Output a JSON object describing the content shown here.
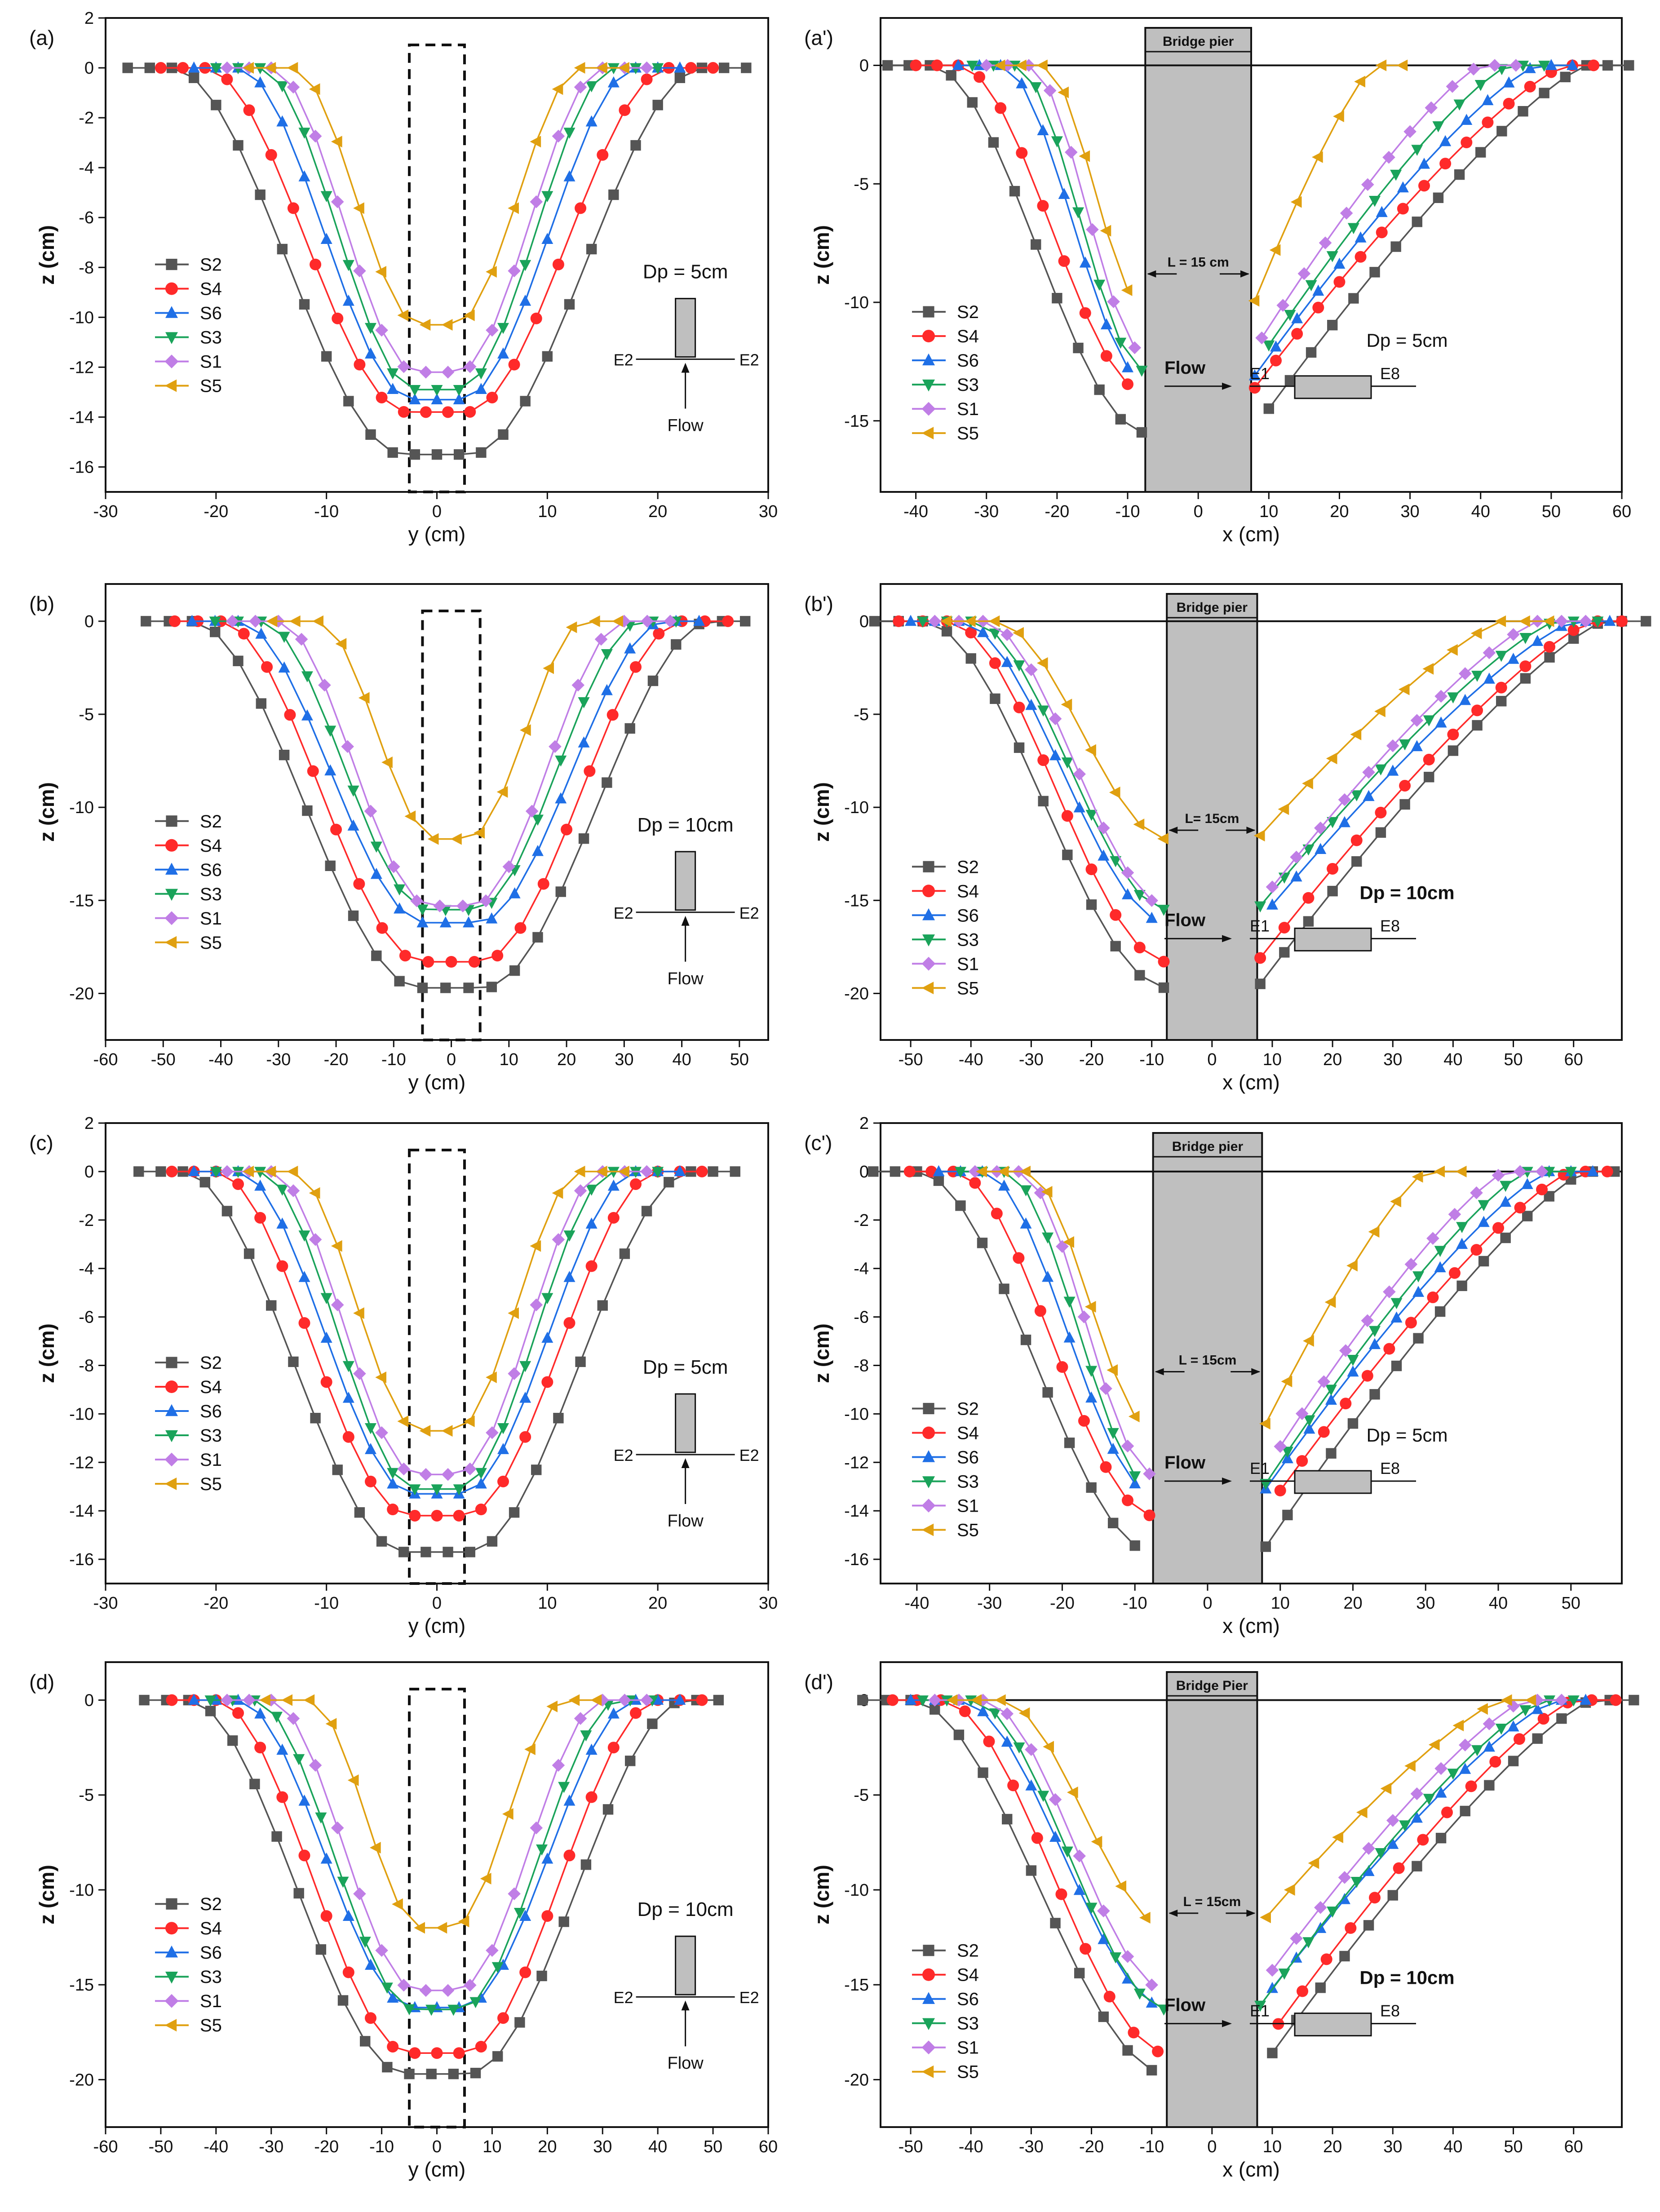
{
  "colors": {
    "S2": "#555555",
    "S4": "#ff2a2a",
    "S6": "#1f6fe6",
    "S3": "#1aa35a",
    "S1": "#c07ee6",
    "S5": "#e0a010",
    "pier_fill": "#bfbfbf"
  },
  "labels": {
    "S2": "S2",
    "S4": "S4",
    "S6": "S6",
    "S3": "S3",
    "S1": "S1",
    "S5": "S5",
    "flow": "Flow",
    "pier": "Bridge pier",
    "pier_alt": "Bridge Pier",
    "E1": "E1",
    "E2": "E2",
    "E8": "E8"
  },
  "chart_data": [
    {
      "id": "a",
      "type": "line",
      "panel_label": "(a)",
      "xlabel": "y (cm)",
      "ylabel": "z (cm)",
      "xlim": [
        -30,
        30
      ],
      "ylim": [
        -17,
        2
      ],
      "xticks": [
        -30,
        -20,
        -10,
        0,
        10,
        20,
        30
      ],
      "yticks": [
        -16,
        -14,
        -12,
        -10,
        -8,
        -6,
        -4,
        -2,
        0,
        2
      ],
      "pier_width_cm": 5,
      "dp_label": "Dp = 5cm",
      "inset": "E2-E2",
      "series": [
        {
          "name": "S2",
          "depth": 15.5,
          "extent": 24
        },
        {
          "name": "S4",
          "depth": 13.8,
          "extent": 21
        },
        {
          "name": "S6",
          "depth": 13.3,
          "extent": 18
        },
        {
          "name": "S3",
          "depth": 12.9,
          "extent": 16
        },
        {
          "name": "S1",
          "depth": 12.2,
          "extent": 15
        },
        {
          "name": "S5",
          "depth": 10.3,
          "extent": 13
        }
      ]
    },
    {
      "id": "a2",
      "type": "line",
      "panel_label": "(a')",
      "xlabel": "x (cm)",
      "ylabel": "z (cm)",
      "xlim": [
        -45,
        60
      ],
      "ylim": [
        -18,
        2
      ],
      "xticks": [
        -40,
        -30,
        -20,
        -10,
        0,
        10,
        20,
        30,
        40,
        50,
        60
      ],
      "yticks": [
        -15,
        -10,
        -5,
        0
      ],
      "pier_x": [
        -7.5,
        7.5
      ],
      "pier_label": "Bridge pier",
      "l_label": "L = 15 cm",
      "dp_label": "Dp = 5cm",
      "series": [
        {
          "name": "S2",
          "depth": 15.5,
          "up": -38,
          "down": 55
        },
        {
          "name": "S4",
          "depth": 13.8,
          "up": -34,
          "down": 52
        },
        {
          "name": "S6",
          "depth": 13.3,
          "up": -28,
          "down": 48
        },
        {
          "name": "S3",
          "depth": 12.9,
          "up": -26,
          "down": 44
        },
        {
          "name": "S1",
          "depth": 12.2,
          "up": -24,
          "down": 40
        },
        {
          "name": "S5",
          "depth": 10.3,
          "up": -22,
          "down": 25
        }
      ]
    },
    {
      "id": "b",
      "type": "line",
      "panel_label": "(b)",
      "xlabel": "y (cm)",
      "ylabel": "z (cm)",
      "xlim": [
        -60,
        55
      ],
      "ylim": [
        -22.5,
        2
      ],
      "xticks": [
        -60,
        -50,
        -40,
        -30,
        -20,
        -10,
        0,
        10,
        20,
        30,
        40,
        50
      ],
      "yticks": [
        -20,
        -15,
        -10,
        -5,
        0
      ],
      "pier_width_cm": 10,
      "dp_label": "Dp = 10cm",
      "inset": "E2-E2",
      "series": [
        {
          "name": "S2",
          "depth": 19.7,
          "extent": 45
        },
        {
          "name": "S4",
          "depth": 18.3,
          "extent": 40
        },
        {
          "name": "S6",
          "depth": 16.2,
          "extent": 37
        },
        {
          "name": "S3",
          "depth": 15.5,
          "extent": 33
        },
        {
          "name": "S1",
          "depth": 15.3,
          "extent": 30
        },
        {
          "name": "S5",
          "depth": 11.7,
          "extent": 23
        }
      ]
    },
    {
      "id": "b2",
      "type": "line",
      "panel_label": "(b')",
      "xlabel": "x (cm)",
      "ylabel": "z (cm)",
      "xlim": [
        -55,
        68
      ],
      "ylim": [
        -22.5,
        2
      ],
      "xticks": [
        -50,
        -40,
        -30,
        -20,
        -10,
        0,
        10,
        20,
        30,
        40,
        50,
        60
      ],
      "yticks": [
        -20,
        -15,
        -10,
        -5,
        0
      ],
      "pier_x": [
        -7.5,
        7.5
      ],
      "pier_label": "Bridge pier",
      "l_label": "L= 15cm",
      "dp_label": "Dp = 10cm",
      "series": [
        {
          "name": "S2",
          "depth": 19.7,
          "up": -48,
          "down": 65
        },
        {
          "name": "S4",
          "depth": 18.3,
          "up": -44,
          "down": 63
        },
        {
          "name": "S6",
          "depth": 16.2,
          "up": -42,
          "down": 60
        },
        {
          "name": "S3",
          "depth": 15.5,
          "up": -40,
          "down": 57
        },
        {
          "name": "S1",
          "depth": 15.3,
          "up": -38,
          "down": 54
        },
        {
          "name": "S5",
          "depth": 11.7,
          "up": -36,
          "down": 48
        }
      ]
    },
    {
      "id": "c",
      "type": "line",
      "panel_label": "(c)",
      "xlabel": "y (cm)",
      "ylabel": "z (cm)",
      "xlim": [
        -30,
        30
      ],
      "ylim": [
        -17,
        2
      ],
      "xticks": [
        -30,
        -20,
        -10,
        0,
        10,
        20,
        30
      ],
      "yticks": [
        -16,
        -14,
        -12,
        -10,
        -8,
        -6,
        -4,
        -2,
        0,
        2
      ],
      "pier_width_cm": 5,
      "dp_label": "Dp = 5cm",
      "inset": "E2-E2",
      "series": [
        {
          "name": "S2",
          "depth": 15.7,
          "extent": 23
        },
        {
          "name": "S4",
          "depth": 14.2,
          "extent": 20
        },
        {
          "name": "S6",
          "depth": 13.3,
          "extent": 18
        },
        {
          "name": "S3",
          "depth": 13.1,
          "extent": 16
        },
        {
          "name": "S1",
          "depth": 12.5,
          "extent": 15
        },
        {
          "name": "S5",
          "depth": 10.7,
          "extent": 13
        }
      ]
    },
    {
      "id": "c2",
      "type": "line",
      "panel_label": "(c')",
      "xlabel": "x (cm)",
      "ylabel": "z (cm)",
      "xlim": [
        -45,
        57
      ],
      "ylim": [
        -17,
        2
      ],
      "xticks": [
        -40,
        -30,
        -20,
        -10,
        0,
        10,
        20,
        30,
        40,
        50
      ],
      "yticks": [
        -16,
        -14,
        -12,
        -10,
        -8,
        -6,
        -4,
        -2,
        0,
        2
      ],
      "pier_x": [
        -7.5,
        7.5
      ],
      "pier_label": "Bridge pier",
      "l_label": "L = 15cm",
      "dp_label": "Dp = 5cm",
      "series": [
        {
          "name": "S2",
          "depth": 15.7,
          "up": -40,
          "down": 52
        },
        {
          "name": "S4",
          "depth": 14.2,
          "up": -35,
          "down": 50
        },
        {
          "name": "S6",
          "depth": 13.3,
          "up": -31,
          "down": 47
        },
        {
          "name": "S3",
          "depth": 13.1,
          "up": -28,
          "down": 44
        },
        {
          "name": "S1",
          "depth": 12.5,
          "up": -26,
          "down": 41
        },
        {
          "name": "S5",
          "depth": 10.7,
          "up": -25,
          "down": 30
        }
      ]
    },
    {
      "id": "d",
      "type": "line",
      "panel_label": "(d)",
      "xlabel": "y (cm)",
      "ylabel": "z (cm)",
      "xlim": [
        -60,
        60
      ],
      "ylim": [
        -22.5,
        2
      ],
      "xticks": [
        -60,
        -50,
        -40,
        -30,
        -20,
        -10,
        0,
        10,
        20,
        30,
        40,
        50,
        60
      ],
      "yticks": [
        -20,
        -15,
        -10,
        -5,
        0
      ],
      "pier_width_cm": 10,
      "dp_label": "Dp = 10cm",
      "inset": "E2-E2",
      "series": [
        {
          "name": "S2",
          "depth": 19.7,
          "extent": 45
        },
        {
          "name": "S4",
          "depth": 18.6,
          "extent": 40
        },
        {
          "name": "S6",
          "depth": 16.2,
          "extent": 36
        },
        {
          "name": "S3",
          "depth": 16.3,
          "extent": 33
        },
        {
          "name": "S1",
          "depth": 15.3,
          "extent": 30
        },
        {
          "name": "S5",
          "depth": 12.0,
          "extent": 23
        }
      ]
    },
    {
      "id": "d2",
      "type": "line",
      "panel_label": "(d')",
      "xlabel": "x (cm)",
      "ylabel": "z (cm)",
      "xlim": [
        -55,
        68
      ],
      "ylim": [
        -22.5,
        2
      ],
      "xticks": [
        -50,
        -40,
        -30,
        -20,
        -10,
        0,
        10,
        20,
        30,
        40,
        50,
        60
      ],
      "yticks": [
        -20,
        -15,
        -10,
        -5,
        0
      ],
      "pier_x": [
        -7.5,
        7.5
      ],
      "pier_label": "Bridge Pier",
      "l_label": "L = 15cm",
      "dp_label": "Dp = 10cm",
      "series": [
        {
          "name": "S2",
          "depth": 19.7,
          "up": -50,
          "down": 63
        },
        {
          "name": "S4",
          "depth": 18.6,
          "up": -45,
          "down": 60
        },
        {
          "name": "S6",
          "depth": 16.2,
          "up": -42,
          "down": 57
        },
        {
          "name": "S3",
          "depth": 16.3,
          "up": -40,
          "down": 55
        },
        {
          "name": "S1",
          "depth": 15.3,
          "up": -38,
          "down": 52
        },
        {
          "name": "S5",
          "depth": 12.0,
          "up": -35,
          "down": 48
        }
      ]
    }
  ]
}
